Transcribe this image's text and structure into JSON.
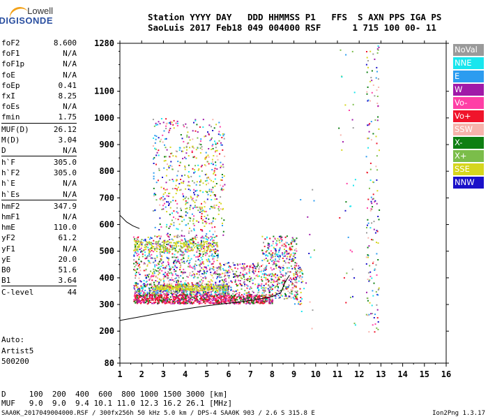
{
  "logo": {
    "line1": "Lowell",
    "line2": "DIGISONDE"
  },
  "header": {
    "line1": "Station YYYY DAY   DDD HHMMSS P1   FFS  S AXN PPS IGA PS",
    "line2": "SaoLuis 2017 Feb18 049 004000 RSF      1 715 100 00- 11"
  },
  "params": [
    {
      "label": "foF2",
      "value": "8.600"
    },
    {
      "label": "foF1",
      "value": "N/A"
    },
    {
      "label": "foF1p",
      "value": "N/A"
    },
    {
      "label": "foE",
      "value": "N/A"
    },
    {
      "label": "foEp",
      "value": "0.41"
    },
    {
      "label": "fxI",
      "value": "8.25"
    },
    {
      "label": "foEs",
      "value": "N/A"
    },
    {
      "label": "fmin",
      "value": "1.75"
    },
    {
      "label": "MUF(D)",
      "value": "26.12"
    },
    {
      "label": "M(D)",
      "value": "3.04"
    },
    {
      "label": "D",
      "value": "N/A"
    },
    {
      "label": "h`F",
      "value": "305.0"
    },
    {
      "label": "h`F2",
      "value": "305.0"
    },
    {
      "label": "h`E",
      "value": "N/A"
    },
    {
      "label": "h`Es",
      "value": "N/A"
    },
    {
      "label": "hmF2",
      "value": "347.9"
    },
    {
      "label": "hmF1",
      "value": "N/A"
    },
    {
      "label": "hmE",
      "value": "110.0"
    },
    {
      "label": "yF2",
      "value": "61.2"
    },
    {
      "label": "yF1",
      "value": "N/A"
    },
    {
      "label": "yE",
      "value": "20.0"
    },
    {
      "label": "B0",
      "value": "51.6"
    },
    {
      "label": "B1",
      "value": "3.64"
    },
    {
      "label": "C-level",
      "value": "44"
    }
  ],
  "auto_text": {
    "line1": "Auto:",
    "line2": "Artist5",
    "line3": "500200"
  },
  "legend": [
    {
      "label": "NoVal",
      "color": "#9a9a9a"
    },
    {
      "label": "NNE",
      "color": "#19e6ee"
    },
    {
      "label": "E",
      "color": "#2c9cf0"
    },
    {
      "label": "W",
      "color": "#a01aa8"
    },
    {
      "label": "Vo-",
      "color": "#ff3fa6"
    },
    {
      "label": "Vo+",
      "color": "#f0142b"
    },
    {
      "label": "SSW",
      "color": "#f7b3ac"
    },
    {
      "label": "X-",
      "color": "#0e7f12"
    },
    {
      "label": "X+",
      "color": "#7bbd4a"
    },
    {
      "label": "SSE",
      "color": "#d6d61e"
    },
    {
      "label": "NNW",
      "color": "#1a10c9"
    }
  ],
  "bottom": {
    "line1": "D     100  200  400  600  800 1000 1500 3000 [km]",
    "line2": "MUF   9.0  9.0  9.4 10.1 11.0 12.3 16.2 26.1 [MHz]"
  },
  "footer": "SAA0K_2017049004000.RSF / 300fx256h 50 kHz 5.0 km / DPS-4 SAA0K 903 / 2.6 S 315.8 E",
  "version": "Ion2Png 1.3.17",
  "chart_data": {
    "type": "scatter",
    "title": "",
    "xlabel": "",
    "ylabel": "",
    "xlim": [
      1,
      16
    ],
    "ylim": [
      80,
      1280
    ],
    "x_ticks": [
      1,
      2,
      3,
      4,
      5,
      6,
      7,
      8,
      9,
      10,
      11,
      12,
      13,
      14,
      15,
      16
    ],
    "y_ticks": [
      80,
      200,
      300,
      400,
      500,
      600,
      700,
      800,
      900,
      1000,
      1100,
      1280
    ],
    "series": [
      {
        "name": "trace-low",
        "color": "#000000",
        "points": [
          [
            1.0,
            240
          ],
          [
            2,
            255
          ],
          [
            3,
            270
          ],
          [
            4,
            283
          ],
          [
            5,
            295
          ],
          [
            6,
            305
          ],
          [
            7,
            315
          ],
          [
            7.5,
            322
          ],
          [
            8,
            330
          ],
          [
            8.4,
            345
          ],
          [
            8.6,
            385
          ],
          [
            8.8,
            410
          ]
        ]
      },
      {
        "name": "trace-high",
        "color": "#000000",
        "points": [
          [
            1.0,
            635
          ],
          [
            1.3,
            610
          ],
          [
            1.6,
            595
          ],
          [
            1.9,
            585
          ]
        ]
      }
    ]
  }
}
